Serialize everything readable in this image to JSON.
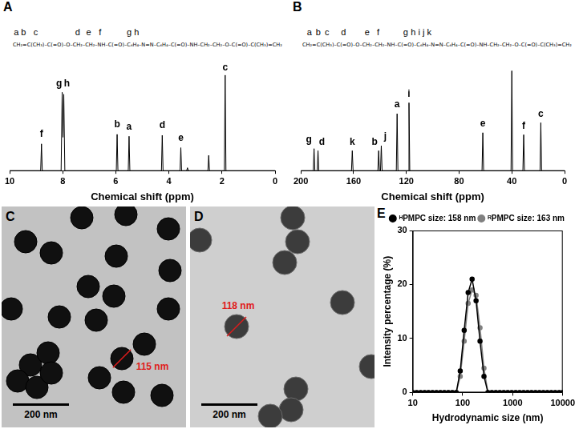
{
  "chart_data": [
    {
      "type": "line",
      "title": "A",
      "structure": {
        "groups": [
          {
            "text": "CH₂=",
            "label": "a b"
          },
          {
            "text": "C(CH₃)",
            "label": "c"
          },
          {
            "text": "–C(=O)–O–"
          },
          {
            "text": "CH₂",
            "label": "d"
          },
          {
            "text": "–CH₂",
            "label": "e"
          },
          {
            "text": "–NH",
            "label": "f"
          },
          {
            "text": "–C(=O)–"
          },
          {
            "text": "C₆H₄",
            "label": "g h"
          },
          {
            "text": "–N=N–C₆H₄–C(=O)–NH–CH₂–CH₂–O–C(=O)–C(CH₃)=CH₂"
          }
        ]
      },
      "x_label": "Chemical shift (ppm)",
      "x": [
        10,
        8.83,
        8.8,
        8.77,
        8.06,
        8.02,
        7.99,
        7.96,
        7.92,
        5.98,
        5.95,
        5.92,
        5.53,
        5.5,
        5.47,
        4.28,
        4.25,
        4.22,
        3.58,
        3.55,
        3.52,
        3.33,
        3.3,
        3.27,
        2.53,
        2.5,
        2.47,
        1.91,
        1.88,
        1.85,
        0
      ],
      "values": [
        0,
        0,
        0.28,
        0,
        0,
        0.82,
        0.35,
        0.8,
        0,
        0,
        0.38,
        0,
        0,
        0.36,
        0,
        0,
        0.37,
        0,
        0,
        0.24,
        0,
        0,
        0.03,
        0,
        0,
        0.16,
        0,
        0,
        1.0,
        0,
        0
      ],
      "color": "#000000",
      "xlim": [
        10,
        0
      ],
      "xticks": [
        10,
        8,
        6,
        4,
        2,
        0
      ],
      "ylim": [
        0,
        1.15
      ],
      "tick_labels": "x",
      "grid": false,
      "annotations": [
        {
          "text": "f",
          "x": 8.8,
          "y": 0.33
        },
        {
          "text": "g",
          "x": 8.14,
          "y": 0.86
        },
        {
          "text": "h",
          "x": 7.84,
          "y": 0.86
        },
        {
          "text": "b",
          "x": 5.95,
          "y": 0.43
        },
        {
          "text": "a",
          "x": 5.5,
          "y": 0.41
        },
        {
          "text": "d",
          "x": 4.25,
          "y": 0.42
        },
        {
          "text": "e",
          "x": 3.55,
          "y": 0.29
        },
        {
          "text": "c",
          "x": 1.88,
          "y": 1.03
        }
      ]
    },
    {
      "type": "line",
      "title": "B",
      "structure": {
        "groups": [
          {
            "text": "CH₂=",
            "label": "a"
          },
          {
            "text": "C",
            "label": "b"
          },
          {
            "text": "(CH₃)",
            "label": "c"
          },
          {
            "text": "–C(=O)",
            "label": "d"
          },
          {
            "text": "–O–"
          },
          {
            "text": "CH₂",
            "label": "e"
          },
          {
            "text": "–CH₂",
            "label": "f"
          },
          {
            "text": "–NH–"
          },
          {
            "text": "C(=O)",
            "label": "g"
          },
          {
            "text": "–C₆H₄",
            "label": "h i j k"
          },
          {
            "text": "–N=N–C₆H₄–C(=O)–NH–CH₂–CH₂–O–C(=O)–C(CH₃)=CH₂"
          }
        ]
      },
      "x_label": "Chemical shift (ppm)",
      "x": [
        200,
        190.6,
        190,
        189.4,
        187.6,
        187,
        186.4,
        161.6,
        161,
        160.4,
        141.6,
        141,
        140.4,
        139.6,
        139,
        138.4,
        127.6,
        127,
        126.4,
        118.6,
        118,
        117.4,
        62.6,
        62,
        61.4,
        40.6,
        40,
        39.4,
        31.6,
        31,
        30.4,
        18.6,
        18,
        17.4,
        0
      ],
      "values": [
        0,
        0,
        0.22,
        0,
        0,
        0.2,
        0,
        0,
        0.2,
        0,
        0,
        0.2,
        0,
        0,
        0.25,
        0,
        0,
        0.57,
        0,
        0,
        0.68,
        0,
        0,
        0.38,
        0,
        0,
        1.0,
        0,
        0,
        0.36,
        0,
        0,
        0.48,
        0,
        0
      ],
      "color": "#000000",
      "xlim": [
        200,
        0
      ],
      "xticks": [
        200,
        160,
        120,
        80,
        40,
        0
      ],
      "ylim": [
        0,
        1.1
      ],
      "tick_labels": "x",
      "grid": false,
      "annotations": [
        {
          "text": "g",
          "x": 194,
          "y": 0.26
        },
        {
          "text": "d",
          "x": 184,
          "y": 0.24
        },
        {
          "text": "k",
          "x": 161,
          "y": 0.24
        },
        {
          "text": "b",
          "x": 144,
          "y": 0.24
        },
        {
          "text": "j",
          "x": 136,
          "y": 0.29
        },
        {
          "text": "a",
          "x": 127,
          "y": 0.61
        },
        {
          "text": "i",
          "x": 118,
          "y": 0.72
        },
        {
          "text": "e",
          "x": 62,
          "y": 0.42
        },
        {
          "text": "f",
          "x": 31,
          "y": 0.4
        },
        {
          "text": "c",
          "x": 18,
          "y": 0.52
        }
      ]
    },
    {
      "type": "line",
      "title": "E",
      "x_label": "Hydrodynamic size (nm)",
      "y_label": "Intensity percentage (%)",
      "log": "x",
      "x": [
        10,
        12,
        14.4,
        17.3,
        20.7,
        24.9,
        29.9,
        35.8,
        43,
        51.6,
        61.9,
        74.3,
        89.2,
        107,
        128.4,
        154.1,
        184.9,
        221.9,
        266.2,
        319.5,
        383.4,
        460.1,
        552.1,
        662.5,
        795,
        954,
        1145,
        1374,
        1648,
        1978,
        2374,
        2848,
        3418,
        4102,
        4922,
        5907,
        7088,
        8506,
        10000
      ],
      "series": [
        {
          "name": "ᴴPMPC size: 158 nm",
          "color": "#000000",
          "marker": "circle",
          "values": [
            0,
            0,
            0,
            0,
            0,
            0,
            0,
            0,
            0,
            0,
            0,
            0,
            4,
            11.5,
            18.5,
            21,
            17,
            9.5,
            3,
            0,
            0,
            0,
            0,
            0,
            0,
            0,
            0,
            0,
            0,
            0,
            0,
            0,
            0,
            0,
            0,
            0,
            0,
            0,
            0
          ]
        },
        {
          "name": "ᴿPMPC size: 163 nm",
          "color": "#808080",
          "marker": "circle",
          "values": [
            0,
            0,
            0,
            0,
            0,
            0,
            0,
            0,
            0,
            0,
            0,
            0,
            3,
            9.5,
            16.5,
            19,
            18,
            12,
            4.5,
            0,
            0,
            0,
            0,
            0,
            0,
            0,
            0,
            0,
            0,
            0,
            0,
            0,
            0,
            0,
            0,
            0,
            0,
            0,
            0
          ]
        }
      ],
      "xlim": [
        10,
        10000
      ],
      "xticks": [
        10,
        100,
        1000,
        10000
      ],
      "ylim": [
        0,
        30
      ],
      "yticks": [
        0,
        10,
        20,
        30
      ],
      "grid": false,
      "legend": "top-right"
    }
  ],
  "images": [
    {
      "title": "C",
      "scale_bar": "200 nm",
      "size_label": "115 nm"
    },
    {
      "title": "D",
      "scale_bar": "200 nm",
      "size_label": "118 nm"
    }
  ]
}
